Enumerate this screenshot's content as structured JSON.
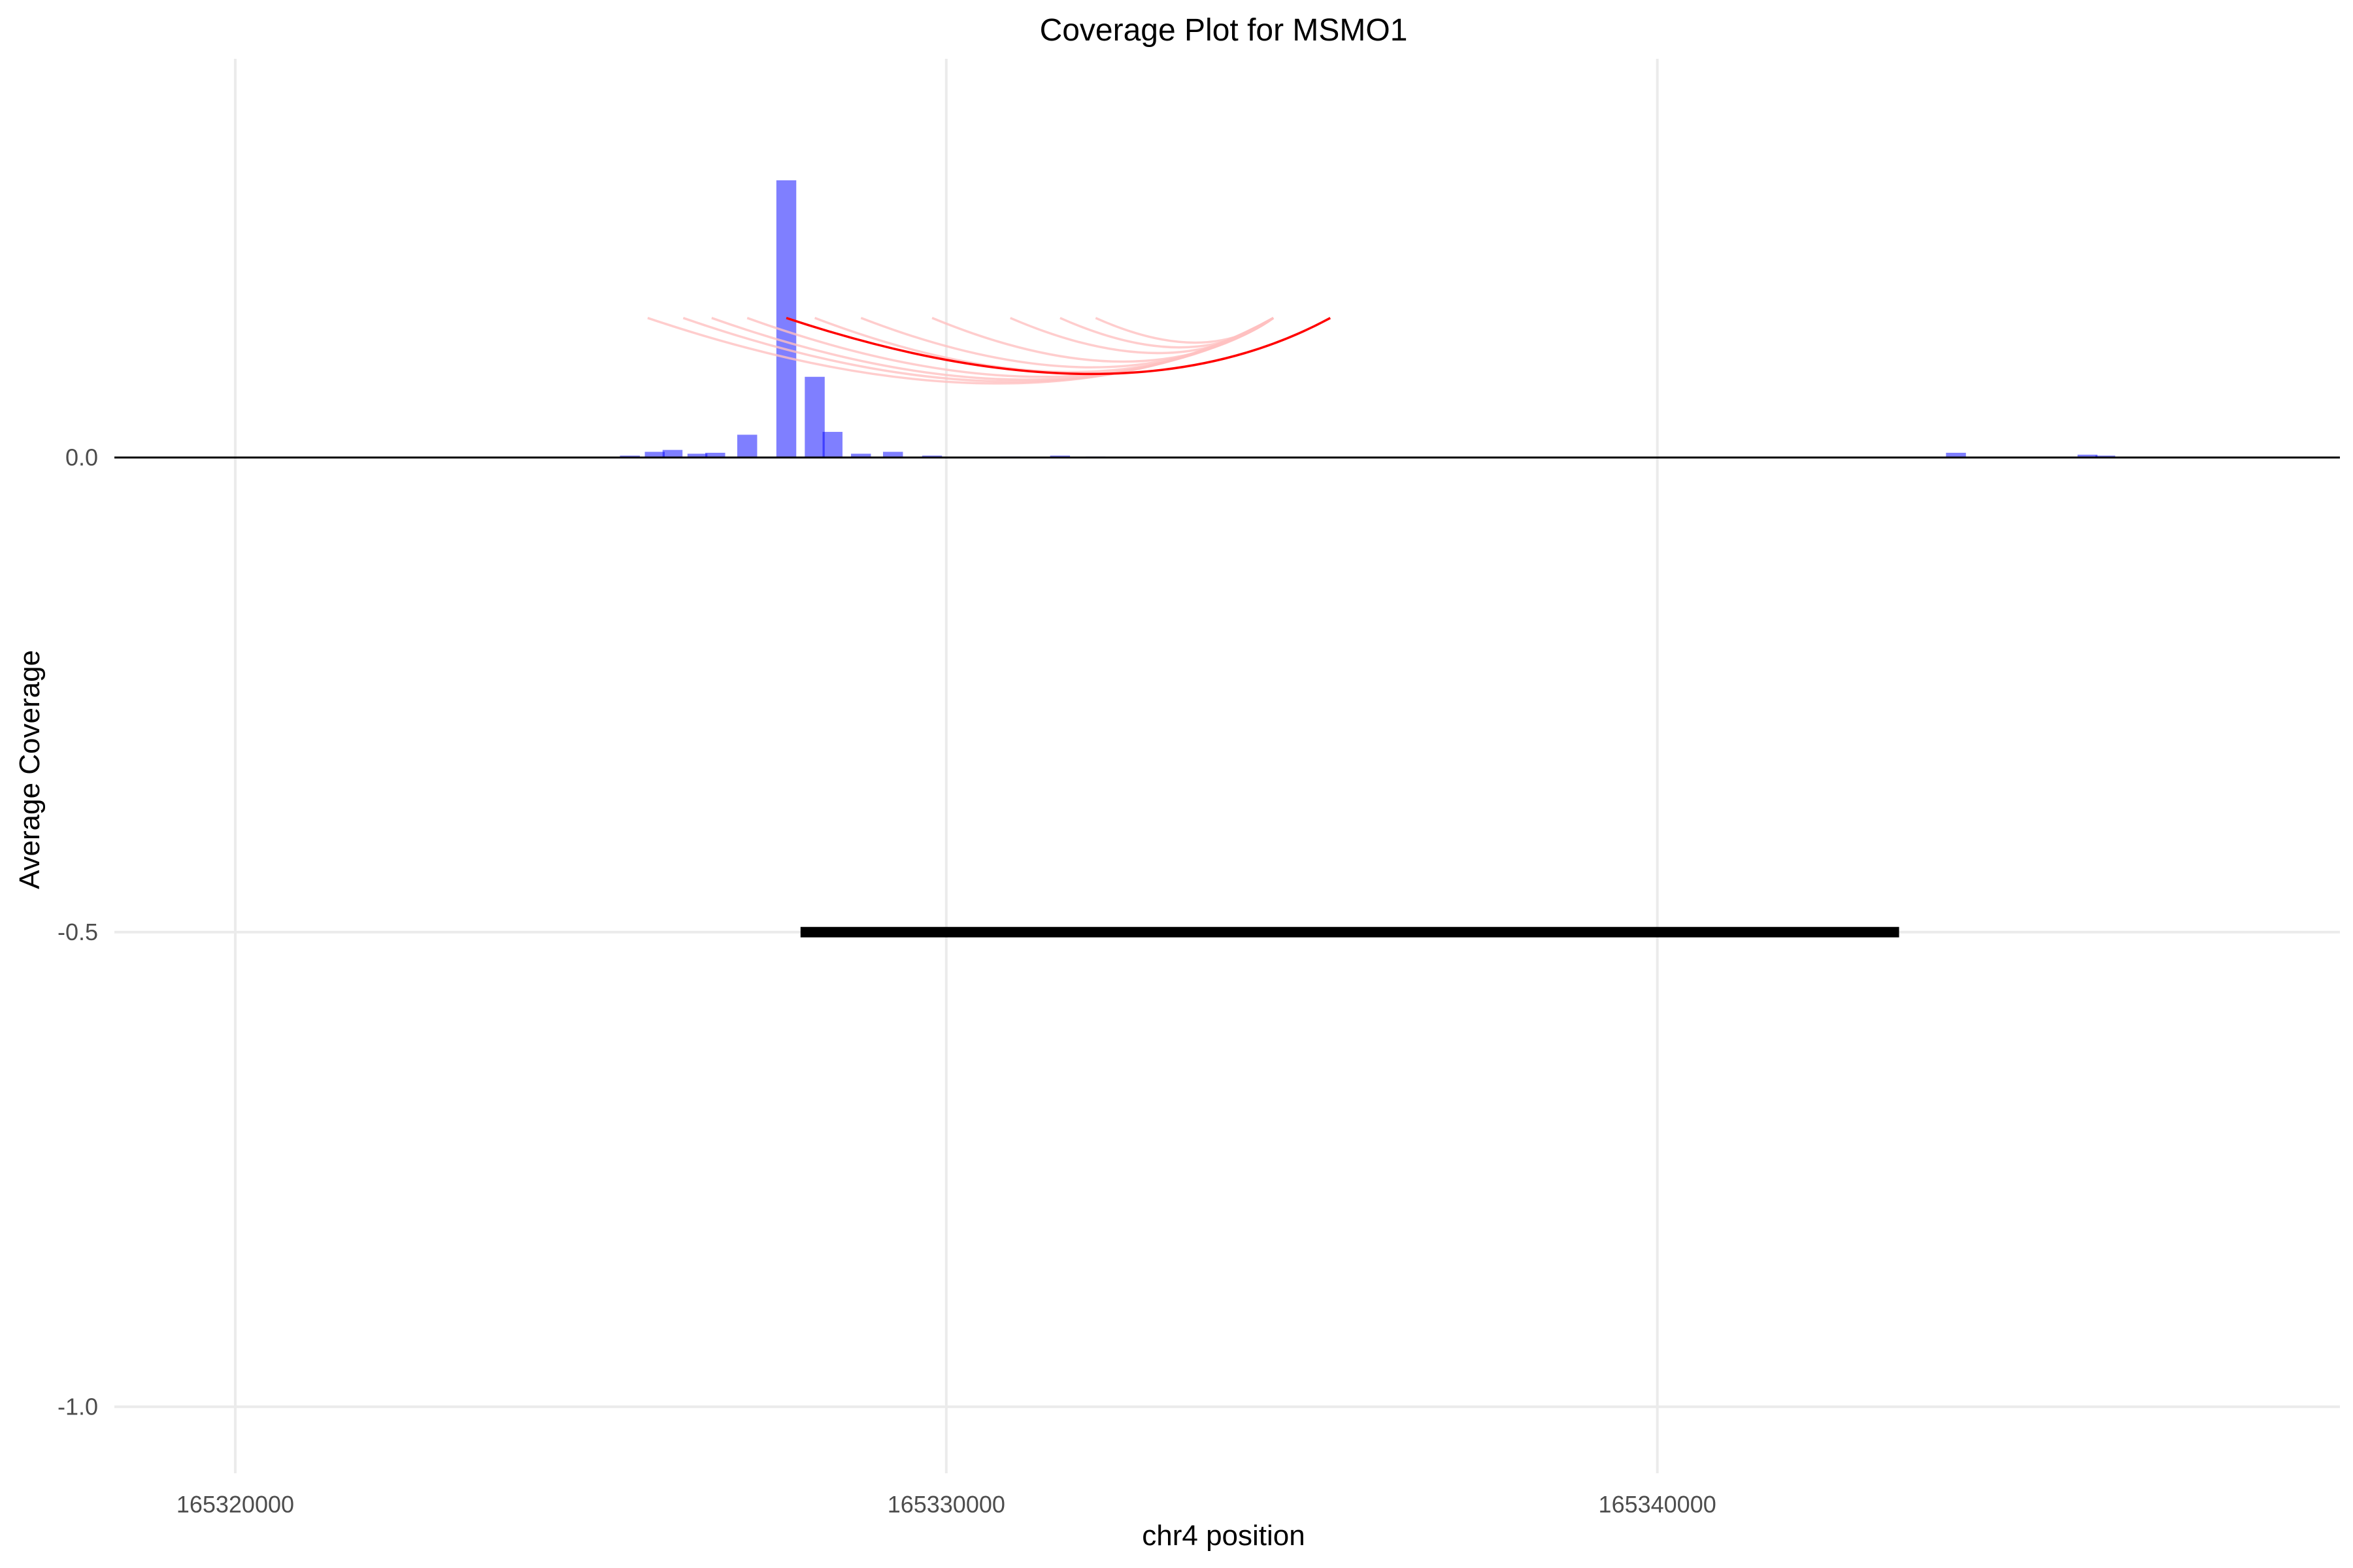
{
  "chart_data": {
    "type": "bar",
    "title": "Coverage Plot for MSMO1",
    "xlabel": "chr4 position",
    "ylabel": "Average Coverage",
    "xlim": [
      165318300,
      165349600
    ],
    "ylim": [
      -1.07,
      0.42
    ],
    "x_ticks": [
      165320000,
      165330000,
      165340000
    ],
    "x_tick_labels": [
      "165320000",
      "165330000",
      "165340000"
    ],
    "y_ticks": [
      -1.0,
      -0.5,
      0.0
    ],
    "y_tick_labels": [
      "-1.0",
      "-0.5",
      "0.0"
    ],
    "grid": "vertical major lines at x ticks; horizontal at -1.0 and -0.5",
    "zero_line": 0.0,
    "colors": {
      "bars": "#0000ff",
      "bar_opacity": 0.5,
      "arc": "#ff0000",
      "faint_arcs": "#ffc0c0",
      "gene_body": "#000000",
      "grid": "#ebebeb"
    },
    "coverage_bars": {
      "bar_width_bp": 280,
      "x": [
        165325550,
        165325900,
        165326150,
        165326500,
        165326750,
        165327200,
        165327750,
        165328150,
        165328400,
        165328800,
        165329250,
        165329800,
        165330900,
        165331600,
        165332100,
        165344200,
        165346050,
        165346300
      ],
      "values": [
        0.002,
        0.006,
        0.008,
        0.004,
        0.005,
        0.024,
        0.292,
        0.085,
        0.027,
        0.004,
        0.006,
        0.002,
        0.001,
        0.002,
        0.001,
        0.005,
        0.003,
        0.002
      ]
    },
    "arc_links": {
      "primary": {
        "start": 165327750,
        "end": 165335400,
        "y_start": 0.147,
        "y_end": 0.147,
        "y_min": 0.088
      },
      "faint": [
        {
          "start": 165325800,
          "end": 165334600,
          "y": 0.147,
          "y_min": 0.078
        },
        {
          "start": 165326300,
          "end": 165334600,
          "y": 0.147,
          "y_min": 0.08
        },
        {
          "start": 165326700,
          "end": 165334600,
          "y": 0.147,
          "y_min": 0.082
        },
        {
          "start": 165327200,
          "end": 165334600,
          "y": 0.147,
          "y_min": 0.085
        },
        {
          "start": 165328150,
          "end": 165334600,
          "y": 0.147,
          "y_min": 0.09
        },
        {
          "start": 165328800,
          "end": 165334600,
          "y": 0.147,
          "y_min": 0.095
        },
        {
          "start": 165329800,
          "end": 165334600,
          "y": 0.147,
          "y_min": 0.101
        },
        {
          "start": 165330900,
          "end": 165334600,
          "y": 0.147,
          "y_min": 0.11
        },
        {
          "start": 165331600,
          "end": 165334600,
          "y": 0.147,
          "y_min": 0.116
        },
        {
          "start": 165332100,
          "end": 165334600,
          "y": 0.147,
          "y_min": 0.121
        }
      ]
    },
    "gene_body": {
      "start": 165327950,
      "end": 165343400,
      "y": -0.5
    }
  }
}
